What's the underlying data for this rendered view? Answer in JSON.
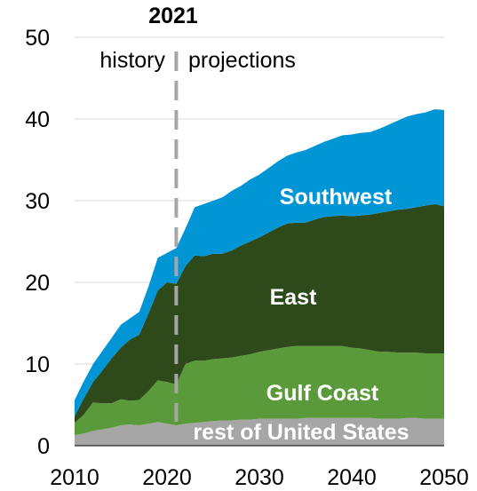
{
  "chart_data": {
    "type": "area",
    "stacked": true,
    "x": [
      2010,
      2011,
      2012,
      2013,
      2014,
      2015,
      2016,
      2017,
      2018,
      2019,
      2020,
      2021,
      2022,
      2023,
      2024,
      2025,
      2026,
      2027,
      2028,
      2029,
      2030,
      2031,
      2032,
      2033,
      2034,
      2035,
      2036,
      2037,
      2038,
      2039,
      2040,
      2041,
      2042,
      2043,
      2044,
      2045,
      2046,
      2047,
      2048,
      2049,
      2050
    ],
    "xlim": [
      2010,
      2050
    ],
    "ylim": [
      0,
      50
    ],
    "x_ticks": [
      "2010",
      "2020",
      "2030",
      "2040",
      "2050"
    ],
    "y_ticks": [
      "0",
      "10",
      "20",
      "30",
      "40",
      "50"
    ],
    "grid": "horizontal",
    "series": [
      {
        "name": "rest of United States",
        "color": "#a6a6a6",
        "values": [
          1.3,
          1.5,
          1.8,
          2.0,
          2.2,
          2.5,
          2.6,
          2.5,
          2.7,
          2.9,
          2.7,
          2.5,
          2.7,
          2.8,
          2.9,
          3.0,
          3.1,
          3.1,
          3.2,
          3.2,
          3.3,
          3.3,
          3.3,
          3.3,
          3.3,
          3.4,
          3.4,
          3.4,
          3.4,
          3.4,
          3.4,
          3.4,
          3.4,
          3.3,
          3.3,
          3.3,
          3.4,
          3.4,
          3.3,
          3.3,
          3.3
        ]
      },
      {
        "name": "Gulf Coast",
        "color": "#5b9a3a",
        "values": [
          1.5,
          2.3,
          3.5,
          3.2,
          3.0,
          3.2,
          2.9,
          3.1,
          4.0,
          5.1,
          5.1,
          5.0,
          7.3,
          7.6,
          7.5,
          7.6,
          7.6,
          7.7,
          7.8,
          8.0,
          8.2,
          8.4,
          8.6,
          8.8,
          8.9,
          8.8,
          8.8,
          8.8,
          8.8,
          8.8,
          8.6,
          8.5,
          8.3,
          8.2,
          8.2,
          8.1,
          8.0,
          8.0,
          8.0,
          8.0,
          8.0
        ]
      },
      {
        "name": "East",
        "color": "#2e4a1b",
        "values": [
          0.8,
          2.0,
          2.5,
          4.0,
          5.5,
          6.3,
          7.5,
          8.0,
          9.5,
          11.0,
          12.2,
          12.3,
          12.0,
          12.9,
          12.8,
          12.9,
          12.8,
          13.1,
          13.5,
          13.8,
          14.0,
          14.4,
          14.8,
          15.1,
          15.1,
          15.1,
          15.5,
          15.8,
          15.9,
          16.0,
          16.1,
          16.3,
          16.6,
          17.0,
          17.2,
          17.5,
          17.6,
          17.8,
          18.1,
          18.3,
          18.0
        ]
      },
      {
        "name": "Southwest",
        "color": "#0096d6",
        "values": [
          2.0,
          2.1,
          2.2,
          2.4,
          2.5,
          2.8,
          2.6,
          2.8,
          3.3,
          4.0,
          3.6,
          4.4,
          4.6,
          5.9,
          6.4,
          6.5,
          6.9,
          7.3,
          7.3,
          7.6,
          7.7,
          7.9,
          8.1,
          8.3,
          8.6,
          8.9,
          9.0,
          9.2,
          9.5,
          9.8,
          10.0,
          10.1,
          10.1,
          10.3,
          10.6,
          10.9,
          11.3,
          11.4,
          11.4,
          11.6,
          11.8
        ]
      }
    ],
    "area_labels": [
      "rest of United States",
      "Gulf Coast",
      "East",
      "Southwest"
    ],
    "annotations": {
      "divider_year": "2021",
      "left_label": "history",
      "right_label": "projections"
    }
  }
}
